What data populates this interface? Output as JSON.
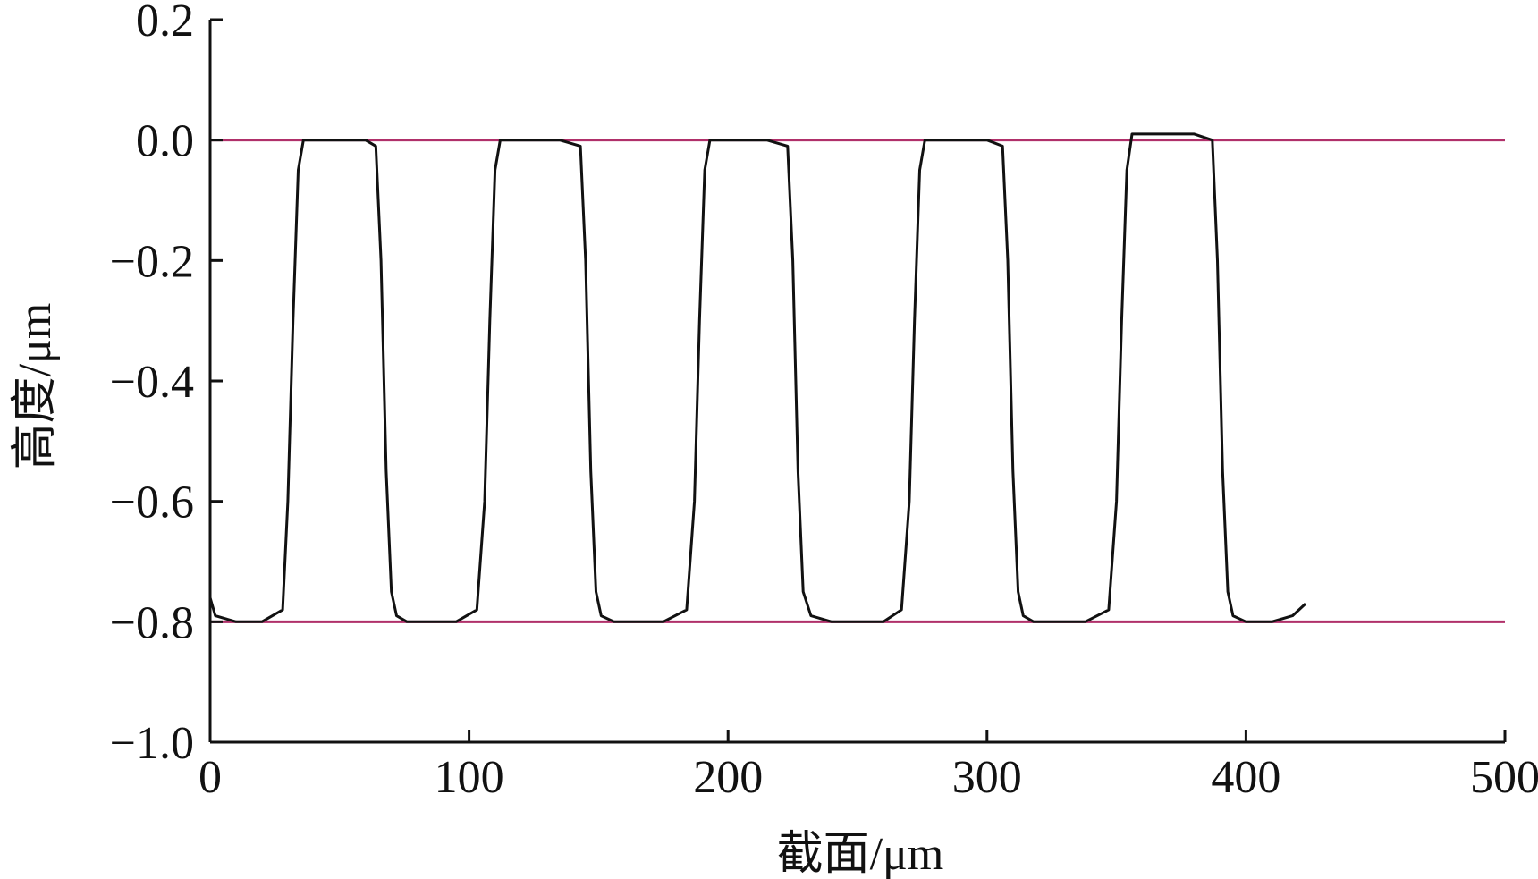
{
  "chart_data": {
    "type": "line",
    "xlabel": "截面/μm",
    "ylabel": "高度/μm",
    "xlim": [
      0,
      500
    ],
    "ylim": [
      -1.0,
      0.2
    ],
    "x_ticks": [
      "0",
      "100",
      "200",
      "300",
      "400",
      "500"
    ],
    "y_ticks": [
      "0.2",
      "0.0",
      "−0.2",
      "−0.4",
      "−0.6",
      "−0.8",
      "−1.0"
    ],
    "grid": false,
    "reference_lines": [
      {
        "y": 0.0,
        "color": "#b0306a"
      },
      {
        "y": -0.8,
        "color": "#b0306a"
      }
    ],
    "series": [
      {
        "color": "#111111",
        "x": [
          0,
          2,
          10,
          20,
          28,
          30,
          32,
          34,
          36,
          40,
          50,
          60,
          64,
          66,
          68,
          70,
          72,
          76,
          85,
          95,
          103,
          106,
          108,
          110,
          112,
          116,
          125,
          135,
          143,
          145,
          147,
          149,
          151,
          156,
          165,
          175,
          184,
          187,
          189,
          191,
          193,
          197,
          205,
          215,
          223,
          225,
          227,
          229,
          232,
          240,
          250,
          260,
          267,
          270,
          272,
          274,
          276,
          280,
          290,
          300,
          306,
          308,
          310,
          312,
          314,
          318,
          328,
          338,
          347,
          350,
          352,
          354,
          356,
          360,
          370,
          380,
          387,
          389,
          391,
          393,
          395,
          400,
          410,
          418,
          423
        ],
        "y": [
          -0.76,
          -0.79,
          -0.8,
          -0.8,
          -0.78,
          -0.6,
          -0.3,
          -0.05,
          0.0,
          0.0,
          0.0,
          0.0,
          -0.01,
          -0.2,
          -0.55,
          -0.75,
          -0.79,
          -0.8,
          -0.8,
          -0.8,
          -0.78,
          -0.6,
          -0.3,
          -0.05,
          0.0,
          0.0,
          0.0,
          0.0,
          -0.01,
          -0.2,
          -0.55,
          -0.75,
          -0.79,
          -0.8,
          -0.8,
          -0.8,
          -0.78,
          -0.6,
          -0.3,
          -0.05,
          0.0,
          0.0,
          0.0,
          0.0,
          -0.01,
          -0.2,
          -0.55,
          -0.75,
          -0.79,
          -0.8,
          -0.8,
          -0.8,
          -0.78,
          -0.6,
          -0.3,
          -0.05,
          0.0,
          0.0,
          0.0,
          0.0,
          -0.01,
          -0.2,
          -0.55,
          -0.75,
          -0.79,
          -0.8,
          -0.8,
          -0.8,
          -0.78,
          -0.6,
          -0.3,
          -0.05,
          0.01,
          0.01,
          0.01,
          0.01,
          0.0,
          -0.2,
          -0.55,
          -0.75,
          -0.79,
          -0.8,
          -0.8,
          -0.79,
          -0.77
        ]
      }
    ]
  }
}
